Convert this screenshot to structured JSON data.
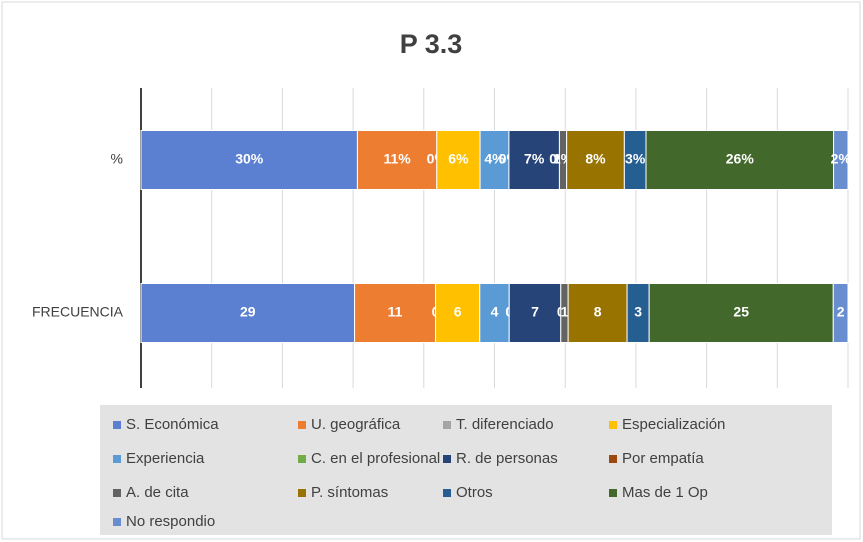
{
  "chart_data": {
    "type": "bar100h",
    "title": "P 3.3",
    "categories": [
      "%",
      "FRECUENCIA"
    ],
    "xlim": [
      0,
      100
    ],
    "xticks": [
      0,
      10,
      20,
      30,
      40,
      50,
      60,
      70,
      80,
      90,
      100
    ],
    "grid": true,
    "legend": "bottom",
    "series": [
      {
        "name": "S. Económica",
        "color": "#5b7fd1",
        "values": [
          30,
          29
        ],
        "value_labels": [
          "30%",
          "29"
        ]
      },
      {
        "name": "U. geográfica",
        "color": "#ed7d31",
        "values": [
          11,
          11
        ],
        "value_labels": [
          "11%",
          "11"
        ]
      },
      {
        "name": "T. diferenciado",
        "color": "#a5a5a5",
        "values": [
          0,
          0
        ],
        "value_labels": [
          "0%",
          "0"
        ]
      },
      {
        "name": "Especialización",
        "color": "#ffc000",
        "values": [
          6,
          6
        ],
        "value_labels": [
          "6%",
          "6"
        ]
      },
      {
        "name": "Experiencia",
        "color": "#5b9bd5",
        "values": [
          4,
          4
        ],
        "value_labels": [
          "4%",
          "4"
        ]
      },
      {
        "name": "C. en el profesional",
        "color": "#70ad47",
        "values": [
          0,
          0
        ],
        "value_labels": [
          "0%",
          "0"
        ]
      },
      {
        "name": "R. de personas",
        "color": "#264478",
        "values": [
          7,
          7
        ],
        "value_labels": [
          "7%",
          "7"
        ]
      },
      {
        "name": "Por empatía",
        "color": "#9e480e",
        "values": [
          0,
          0
        ],
        "value_labels": [
          "0%",
          "0"
        ]
      },
      {
        "name": "A. de cita",
        "color": "#636363",
        "values": [
          1,
          1
        ],
        "value_labels": [
          "1%",
          "1"
        ]
      },
      {
        "name": "P. síntomas",
        "color": "#997300",
        "values": [
          8,
          8
        ],
        "value_labels": [
          "8%",
          "8"
        ]
      },
      {
        "name": "Otros",
        "color": "#255e91",
        "values": [
          3,
          3
        ],
        "value_labels": [
          "3%",
          "3"
        ]
      },
      {
        "name": "Mas de 1 Op",
        "color": "#43682b",
        "values": [
          26,
          25
        ],
        "value_labels": [
          "26%",
          "25"
        ]
      },
      {
        "name": "No respondio",
        "color": "#698ed0",
        "values": [
          2,
          2
        ],
        "value_labels": [
          "2%",
          "2"
        ]
      }
    ]
  }
}
